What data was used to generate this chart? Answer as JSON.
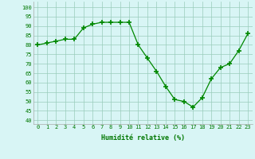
{
  "x": [
    0,
    1,
    2,
    3,
    4,
    5,
    6,
    7,
    8,
    9,
    10,
    11,
    12,
    13,
    14,
    15,
    16,
    17,
    18,
    19,
    20,
    21,
    22,
    23
  ],
  "y": [
    80,
    81,
    82,
    83,
    83,
    89,
    91,
    92,
    92,
    92,
    92,
    80,
    73,
    66,
    58,
    51,
    50,
    47,
    52,
    62,
    68,
    70,
    77,
    86
  ],
  "line_color": "#008800",
  "marker_color": "#008800",
  "bg_color": "#d8f5f5",
  "grid_color": "#99ccbb",
  "xlabel": "Humidité relative (%)",
  "ylabel_ticks": [
    40,
    45,
    50,
    55,
    60,
    65,
    70,
    75,
    80,
    85,
    90,
    95,
    100
  ],
  "ylim": [
    38,
    103
  ],
  "xlim": [
    -0.5,
    23.5
  ],
  "xlabel_color": "#007700",
  "tick_color": "#007700",
  "tick_fontsize": 5.0,
  "xlabel_fontsize": 6.0
}
